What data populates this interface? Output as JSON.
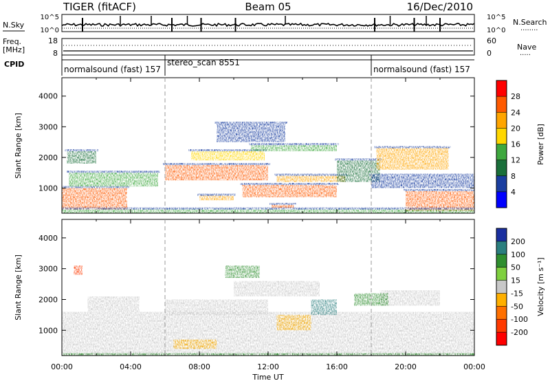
{
  "header": {
    "left_title": "TIGER (fitACF)",
    "center_title": "Beam 05",
    "right_title": "16/Dec/2010"
  },
  "strip_panels": {
    "nsky": {
      "label": "N.Sky",
      "left_ticks": [
        "10^5",
        "10^0"
      ],
      "right_ticks": [
        "10^5",
        "10^0"
      ],
      "right_label": "N.Search",
      "right_legend": "........"
    },
    "freq": {
      "label_line1": "Freq.",
      "label_line2": "[MHz]",
      "left_ticks": [
        "18",
        "8"
      ],
      "right_ticks": [
        "60",
        "0"
      ],
      "right_label": "Nave",
      "right_legend": "....."
    },
    "cpid": {
      "label": "CPID",
      "segments": [
        {
          "label": "normalsound (fast) 157",
          "start": 0,
          "end": 6
        },
        {
          "label": "stereo_scan 8551",
          "start": 6,
          "end": 18
        },
        {
          "label": "normalsound (fast) 157",
          "start": 18,
          "end": 24
        }
      ]
    }
  },
  "chart_data": [
    {
      "type": "heatmap",
      "panel": "power",
      "ylabel": "Slant Range [km]",
      "yticks": [
        1000,
        2000,
        3000,
        4000
      ],
      "ylim": [
        180,
        4600
      ],
      "xlim": [
        0,
        24
      ],
      "colorbar": {
        "label": "Power [dB]",
        "ticks": [
          "28",
          "24",
          "20",
          "16",
          "12",
          "8",
          "4"
        ],
        "colors": [
          "#ff0000",
          "#ff5a00",
          "#ffa500",
          "#ffd700",
          "#3ea83e",
          "#1a6f3a",
          "#1a3ea0",
          "#0000ff"
        ]
      },
      "regions": [
        {
          "t0": 0.0,
          "t1": 3.8,
          "r0": 300,
          "r1": 1000,
          "level": 26
        },
        {
          "t0": 0.4,
          "t1": 5.6,
          "r0": 1050,
          "r1": 1500,
          "level": 12
        },
        {
          "t0": 0.3,
          "t1": 2.0,
          "r0": 1800,
          "r1": 2200,
          "level": 8
        },
        {
          "t0": 6.0,
          "t1": 12.0,
          "r0": 1250,
          "r1": 1750,
          "level": 26
        },
        {
          "t0": 7.5,
          "t1": 11.8,
          "r0": 1900,
          "r1": 2200,
          "level": 18
        },
        {
          "t0": 10.5,
          "t1": 16.0,
          "r0": 700,
          "r1": 1100,
          "level": 26
        },
        {
          "t0": 12.5,
          "t1": 16.5,
          "r0": 1200,
          "r1": 1400,
          "level": 20
        },
        {
          "t0": 12.2,
          "t1": 13.5,
          "r0": 350,
          "r1": 450,
          "level": 24
        },
        {
          "t0": 8.0,
          "t1": 10.0,
          "r0": 600,
          "r1": 750,
          "level": 22
        },
        {
          "t0": 11.0,
          "t1": 16.0,
          "r0": 2200,
          "r1": 2400,
          "level": 14
        },
        {
          "t0": 16.0,
          "t1": 18.5,
          "r0": 1200,
          "r1": 1900,
          "level": 10
        },
        {
          "t0": 18.3,
          "t1": 22.5,
          "r0": 1600,
          "r1": 2300,
          "level": 22
        },
        {
          "t0": 20.0,
          "t1": 24.0,
          "r0": 250,
          "r1": 900,
          "level": 26
        },
        {
          "t0": 18.0,
          "t1": 24.0,
          "r0": 1000,
          "r1": 1400,
          "level": 6
        },
        {
          "t0": 9.0,
          "t1": 13.0,
          "r0": 2500,
          "r1": 3100,
          "level": 6
        },
        {
          "t0": 0.0,
          "t1": 24.0,
          "r0": 180,
          "r1": 300,
          "level": 14
        }
      ]
    },
    {
      "type": "heatmap",
      "panel": "velocity",
      "ylabel": "Slant Range [km]",
      "yticks": [
        1000,
        2000,
        3000,
        4000
      ],
      "ylim": [
        180,
        4600
      ],
      "xlim": [
        0,
        24
      ],
      "xticks": [
        "00:00",
        "04:00",
        "08:00",
        "12:00",
        "16:00",
        "20:00",
        "00:00"
      ],
      "xlabel": "Time UT",
      "colorbar": {
        "label": "Velocity [m s⁻¹]",
        "ticks": [
          "200",
          "100",
          "50",
          "15",
          "-15",
          "-50",
          "-100",
          "-200"
        ],
        "colors": [
          "#1a2fa0",
          "#2b7f7f",
          "#2f8f2f",
          "#7fd03f",
          "#c8c8c8",
          "#ffb000",
          "#ff7000",
          "#ff3a00",
          "#ff0000"
        ]
      },
      "regions": [
        {
          "t0": 0.0,
          "t1": 24.0,
          "r0": 200,
          "r1": 1600,
          "vel": 0
        },
        {
          "t0": 1.5,
          "t1": 4.5,
          "r0": 1600,
          "r1": 2100,
          "vel": 0
        },
        {
          "t0": 6.0,
          "t1": 12.0,
          "r0": 1500,
          "r1": 2000,
          "vel": 0
        },
        {
          "t0": 10.0,
          "t1": 15.0,
          "r0": 2100,
          "r1": 2600,
          "vel": 0
        },
        {
          "t0": 18.5,
          "t1": 22.0,
          "r0": 1800,
          "r1": 2300,
          "vel": 0
        },
        {
          "t0": 12.5,
          "t1": 14.5,
          "r0": 1000,
          "r1": 1500,
          "vel": -50
        },
        {
          "t0": 14.5,
          "t1": 16.0,
          "r0": 1500,
          "r1": 2000,
          "vel": 100
        },
        {
          "t0": 6.5,
          "t1": 9.0,
          "r0": 400,
          "r1": 700,
          "vel": -50
        },
        {
          "t0": 0.7,
          "t1": 1.2,
          "r0": 2800,
          "r1": 3100,
          "vel": -200
        },
        {
          "t0": 9.5,
          "t1": 11.5,
          "r0": 2700,
          "r1": 3100,
          "vel": 50
        },
        {
          "t0": 17.0,
          "t1": 19.0,
          "r0": 1800,
          "r1": 2200,
          "vel": 50
        },
        {
          "t0": 0.0,
          "t1": 24.0,
          "r0": 180,
          "r1": 260,
          "vel": 50
        }
      ]
    }
  ]
}
